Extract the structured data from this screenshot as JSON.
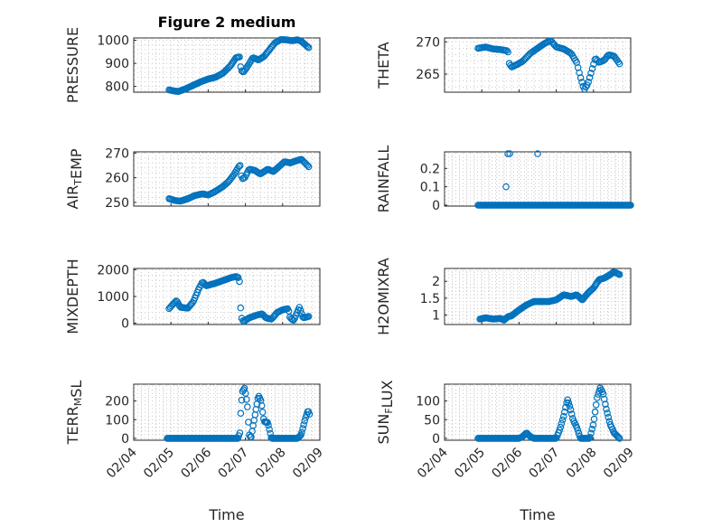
{
  "figure_title": "Figure 2 medium",
  "colors": {
    "marker": "#0072bd",
    "axis": "#262626",
    "grid": "#c8c8c8"
  },
  "chart_data": [
    {
      "type": "scatter",
      "id": "pressure",
      "title": "Figure 2 medium",
      "ylabel": "PRESSURE",
      "ylabel_parts": [
        {
          "t": "PRESSURE",
          "sub": false
        }
      ],
      "ylim": [
        775,
        1010
      ],
      "yticks": [
        800,
        900,
        1000
      ],
      "ytick_labels": [
        "800",
        "900",
        "1000"
      ],
      "xlim": [
        0,
        5
      ],
      "xticks": [
        0,
        1,
        2,
        3,
        4,
        5
      ],
      "xtick_labels": [
        "02/04",
        "02/05",
        "02/06",
        "02/07",
        "02/08",
        "02/09"
      ],
      "anchors": [
        [
          0.95,
          785
        ],
        [
          1.1,
          780
        ],
        [
          1.2,
          778
        ],
        [
          1.4,
          790
        ],
        [
          1.6,
          805
        ],
        [
          1.8,
          820
        ],
        [
          2.0,
          832
        ],
        [
          2.2,
          840
        ],
        [
          2.4,
          858
        ],
        [
          2.6,
          890
        ],
        [
          2.75,
          925
        ],
        [
          2.85,
          928
        ],
        [
          2.88,
          870
        ],
        [
          2.95,
          862
        ],
        [
          3.05,
          885
        ],
        [
          3.2,
          925
        ],
        [
          3.35,
          915
        ],
        [
          3.5,
          930
        ],
        [
          3.65,
          960
        ],
        [
          3.8,
          990
        ],
        [
          3.95,
          1003
        ],
        [
          4.1,
          1002
        ],
        [
          4.25,
          998
        ],
        [
          4.4,
          1002
        ],
        [
          4.5,
          996
        ],
        [
          4.6,
          982
        ],
        [
          4.7,
          968
        ]
      ],
      "count": 120
    },
    {
      "type": "scatter",
      "id": "theta",
      "title": "",
      "ylabel": "THETA",
      "ylabel_parts": [
        {
          "t": "THETA",
          "sub": false
        }
      ],
      "ylim": [
        262.2,
        270.6
      ],
      "yticks": [
        265,
        270
      ],
      "ytick_labels": [
        "265",
        "270"
      ],
      "xlim": [
        0,
        5
      ],
      "xticks": [
        0,
        1,
        2,
        3,
        4,
        5
      ],
      "xtick_labels": [
        "02/04",
        "02/05",
        "02/06",
        "02/07",
        "02/08",
        "02/09"
      ],
      "anchors": [
        [
          0.9,
          269.0
        ],
        [
          1.1,
          269.2
        ],
        [
          1.3,
          268.9
        ],
        [
          1.5,
          268.8
        ],
        [
          1.7,
          268.6
        ],
        [
          1.72,
          266.8
        ],
        [
          1.8,
          266.1
        ],
        [
          1.95,
          266.5
        ],
        [
          2.1,
          267.0
        ],
        [
          2.3,
          268.2
        ],
        [
          2.5,
          269.0
        ],
        [
          2.7,
          269.8
        ],
        [
          2.85,
          270.2
        ],
        [
          3.0,
          269.2
        ],
        [
          3.2,
          268.9
        ],
        [
          3.4,
          268.2
        ],
        [
          3.55,
          266.8
        ],
        [
          3.65,
          264.5
        ],
        [
          3.75,
          262.6
        ],
        [
          3.85,
          263.5
        ],
        [
          3.95,
          265.5
        ],
        [
          4.05,
          267.5
        ],
        [
          4.15,
          266.8
        ],
        [
          4.3,
          267.2
        ],
        [
          4.4,
          268.0
        ],
        [
          4.55,
          267.8
        ],
        [
          4.7,
          266.6
        ]
      ],
      "count": 110
    },
    {
      "type": "scatter",
      "id": "air_temp",
      "title": "",
      "ylabel": "AIR_TEMP",
      "ylabel_parts": [
        {
          "t": "AIR",
          "sub": false
        },
        {
          "t": "T",
          "sub": true
        },
        {
          "t": "EMP",
          "sub": false
        }
      ],
      "ylim": [
        248.5,
        270.5
      ],
      "yticks": [
        250,
        260,
        270
      ],
      "ytick_labels": [
        "250",
        "260",
        "270"
      ],
      "xlim": [
        0,
        5
      ],
      "xticks": [
        0,
        1,
        2,
        3,
        4,
        5
      ],
      "xtick_labels": [
        "02/04",
        "02/05",
        "02/06",
        "02/07",
        "02/08",
        "02/09"
      ],
      "anchors": [
        [
          0.95,
          251.5
        ],
        [
          1.1,
          250.8
        ],
        [
          1.25,
          250.5
        ],
        [
          1.45,
          251.5
        ],
        [
          1.65,
          252.8
        ],
        [
          1.85,
          253.5
        ],
        [
          2.0,
          253.0
        ],
        [
          2.2,
          254.5
        ],
        [
          2.4,
          256.5
        ],
        [
          2.55,
          258.5
        ],
        [
          2.7,
          261.5
        ],
        [
          2.82,
          264.5
        ],
        [
          2.86,
          265.0
        ],
        [
          2.9,
          259.5
        ],
        [
          2.98,
          260.0
        ],
        [
          3.1,
          263.5
        ],
        [
          3.25,
          263.0
        ],
        [
          3.4,
          261.5
        ],
        [
          3.6,
          263.5
        ],
        [
          3.75,
          262.5
        ],
        [
          3.9,
          264.5
        ],
        [
          4.05,
          266.5
        ],
        [
          4.2,
          266.0
        ],
        [
          4.35,
          266.8
        ],
        [
          4.5,
          267.5
        ],
        [
          4.6,
          266.0
        ],
        [
          4.7,
          264.5
        ]
      ],
      "count": 115
    },
    {
      "type": "scatter",
      "id": "rainfall",
      "title": "",
      "ylabel": "RAINFALL",
      "ylabel_parts": [
        {
          "t": "RAINFALL",
          "sub": false
        }
      ],
      "ylim": [
        -0.005,
        0.29
      ],
      "yticks": [
        0,
        0.1,
        0.2
      ],
      "ytick_labels": [
        "0",
        "0.1",
        "0.2"
      ],
      "xlim": [
        0,
        5
      ],
      "xticks": [
        0,
        1,
        2,
        3,
        4,
        5
      ],
      "xtick_labels": [
        "02/04",
        "02/05",
        "02/06",
        "02/07",
        "02/08",
        "02/09"
      ],
      "anchors": [
        [
          0.9,
          0
        ],
        [
          5.0,
          0
        ]
      ],
      "count": 160,
      "extra_points": [
        [
          1.65,
          0.1
        ],
        [
          1.7,
          0.28
        ],
        [
          1.75,
          0.28
        ],
        [
          2.5,
          0.28
        ]
      ]
    },
    {
      "type": "scatter",
      "id": "mixdepth",
      "title": "",
      "ylabel": "MIXDEPTH",
      "ylabel_parts": [
        {
          "t": "MIXDEPTH",
          "sub": false
        }
      ],
      "ylim": [
        -50,
        2050
      ],
      "yticks": [
        0,
        1000,
        2000
      ],
      "ytick_labels": [
        "0",
        "1000",
        "2000"
      ],
      "xlim": [
        0,
        5
      ],
      "xticks": [
        0,
        1,
        2,
        3,
        4,
        5
      ],
      "xtick_labels": [
        "02/04",
        "02/05",
        "02/06",
        "02/07",
        "02/08",
        "02/09"
      ],
      "anchors": [
        [
          0.95,
          550
        ],
        [
          1.05,
          700
        ],
        [
          1.15,
          850
        ],
        [
          1.25,
          600
        ],
        [
          1.45,
          560
        ],
        [
          1.6,
          800
        ],
        [
          1.75,
          1300
        ],
        [
          1.85,
          1550
        ],
        [
          1.95,
          1400
        ],
        [
          2.2,
          1500
        ],
        [
          2.4,
          1600
        ],
        [
          2.6,
          1700
        ],
        [
          2.75,
          1750
        ],
        [
          2.82,
          1700
        ],
        [
          2.85,
          1500
        ],
        [
          2.88,
          250
        ],
        [
          2.95,
          50
        ],
        [
          3.1,
          200
        ],
        [
          3.3,
          300
        ],
        [
          3.45,
          350
        ],
        [
          3.55,
          200
        ],
        [
          3.7,
          150
        ],
        [
          3.85,
          400
        ],
        [
          4.0,
          500
        ],
        [
          4.15,
          550
        ],
        [
          4.2,
          200
        ],
        [
          4.3,
          100
        ],
        [
          4.4,
          450
        ],
        [
          4.45,
          600
        ],
        [
          4.55,
          200
        ],
        [
          4.7,
          250
        ]
      ],
      "count": 120
    },
    {
      "type": "scatter",
      "id": "h2omixra",
      "title": "",
      "ylabel": "H2OMIXRA",
      "ylabel_parts": [
        {
          "t": "H2OMIXRA",
          "sub": false
        }
      ],
      "ylim": [
        0.72,
        2.38
      ],
      "yticks": [
        1,
        1.5,
        2
      ],
      "ytick_labels": [
        "1",
        "1.5",
        "2"
      ],
      "xlim": [
        0,
        5
      ],
      "xticks": [
        0,
        1,
        2,
        3,
        4,
        5
      ],
      "xtick_labels": [
        "02/04",
        "02/05",
        "02/06",
        "02/07",
        "02/08",
        "02/09"
      ],
      "anchors": [
        [
          0.95,
          0.88
        ],
        [
          1.1,
          0.92
        ],
        [
          1.3,
          0.88
        ],
        [
          1.5,
          0.9
        ],
        [
          1.6,
          0.85
        ],
        [
          1.7,
          0.95
        ],
        [
          1.8,
          0.98
        ],
        [
          2.0,
          1.15
        ],
        [
          2.2,
          1.3
        ],
        [
          2.4,
          1.4
        ],
        [
          2.6,
          1.4
        ],
        [
          2.8,
          1.4
        ],
        [
          3.0,
          1.45
        ],
        [
          3.2,
          1.6
        ],
        [
          3.4,
          1.55
        ],
        [
          3.55,
          1.6
        ],
        [
          3.7,
          1.45
        ],
        [
          3.85,
          1.65
        ],
        [
          4.0,
          1.8
        ],
        [
          4.15,
          2.05
        ],
        [
          4.3,
          2.1
        ],
        [
          4.45,
          2.2
        ],
        [
          4.55,
          2.28
        ],
        [
          4.7,
          2.2
        ]
      ],
      "count": 140
    },
    {
      "type": "scatter",
      "id": "terr_msl",
      "title": "",
      "ylabel": "TERR_MSL",
      "ylabel_parts": [
        {
          "t": "TERR",
          "sub": false
        },
        {
          "t": "M",
          "sub": true
        },
        {
          "t": "SL",
          "sub": false
        }
      ],
      "ylim": [
        -10,
        290
      ],
      "yticks": [
        0,
        100,
        200
      ],
      "ytick_labels": [
        "0",
        "100",
        "200"
      ],
      "xlim": [
        0,
        5
      ],
      "xticks": [
        0,
        1,
        2,
        3,
        4,
        5
      ],
      "xtick_labels": [
        "02/04",
        "02/05",
        "02/06",
        "02/07",
        "02/08",
        "02/09"
      ],
      "anchors": [
        [
          0.9,
          0
        ],
        [
          2.8,
          0
        ],
        [
          2.85,
          30
        ],
        [
          2.88,
          160
        ],
        [
          2.92,
          250
        ],
        [
          2.98,
          270
        ],
        [
          3.05,
          180
        ],
        [
          3.1,
          20
        ],
        [
          3.15,
          0
        ],
        [
          3.2,
          60
        ],
        [
          3.28,
          150
        ],
        [
          3.35,
          230
        ],
        [
          3.42,
          200
        ],
        [
          3.5,
          90
        ],
        [
          3.6,
          85
        ],
        [
          3.7,
          0
        ],
        [
          4.4,
          0
        ],
        [
          4.5,
          20
        ],
        [
          4.6,
          100
        ],
        [
          4.68,
          150
        ],
        [
          4.72,
          130
        ]
      ],
      "count": 150
    },
    {
      "type": "scatter",
      "id": "sun_flux",
      "title": "",
      "ylabel": "SUN_FLUX",
      "ylabel_parts": [
        {
          "t": "SUN",
          "sub": false
        },
        {
          "t": "F",
          "sub": true
        },
        {
          "t": "LUX",
          "sub": false
        }
      ],
      "ylim": [
        -5,
        145
      ],
      "yticks": [
        0,
        50,
        100
      ],
      "ytick_labels": [
        "0",
        "50",
        "100"
      ],
      "xlim": [
        0,
        5
      ],
      "xticks": [
        0,
        1,
        2,
        3,
        4,
        5
      ],
      "xtick_labels": [
        "02/04",
        "02/05",
        "02/06",
        "02/07",
        "02/08",
        "02/09"
      ],
      "anchors": [
        [
          0.9,
          0
        ],
        [
          2.0,
          0
        ],
        [
          2.1,
          5
        ],
        [
          2.2,
          15
        ],
        [
          2.3,
          5
        ],
        [
          2.4,
          0
        ],
        [
          3.0,
          0
        ],
        [
          3.1,
          25
        ],
        [
          3.2,
          60
        ],
        [
          3.3,
          105
        ],
        [
          3.38,
          80
        ],
        [
          3.45,
          50
        ],
        [
          3.55,
          30
        ],
        [
          3.65,
          0
        ],
        [
          3.9,
          0
        ],
        [
          4.0,
          40
        ],
        [
          4.1,
          110
        ],
        [
          4.18,
          135
        ],
        [
          4.26,
          120
        ],
        [
          4.34,
          80
        ],
        [
          4.44,
          40
        ],
        [
          4.55,
          15
        ],
        [
          4.65,
          5
        ],
        [
          4.7,
          0
        ]
      ],
      "count": 140
    }
  ],
  "xlabel_bottom": "Time"
}
